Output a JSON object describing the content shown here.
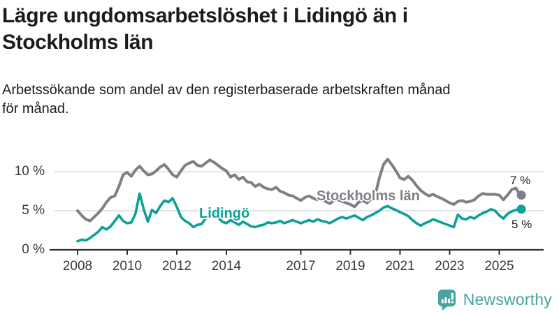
{
  "header": {
    "title_line1": "Lägre ungdomsarbetslöshet i Lidingö än i",
    "title_line2": "Stockholms län",
    "subtitle_line1": "Arbetssökande som andel av den registerbaserade arbetskraften månad",
    "subtitle_line2": "för månad."
  },
  "chart_data": {
    "type": "line",
    "title": "Lägre ungdomsarbetslöshet i Lidingö än i Stockholms län",
    "subtitle": "Arbetssökande som andel av den registerbaserade arbetskraften månad för månad.",
    "unit": "%",
    "grid": true,
    "legend_position": "inline-labels",
    "x_start_year": 2008,
    "x_step_months": 2,
    "ylim": [
      0,
      12.5
    ],
    "grid_values": [
      5,
      10
    ],
    "y_ticks": [
      {
        "value": 0,
        "label": "0 %"
      },
      {
        "value": 5,
        "label": "5 %"
      },
      {
        "value": 10,
        "label": "10 %"
      }
    ],
    "x_tick_years": [
      2008,
      2010,
      2012,
      2014,
      2017,
      2019,
      2021,
      2023,
      2025
    ],
    "x_tick_labels": [
      "2008",
      "2010",
      "2012",
      "2014",
      "2017",
      "2019",
      "2021",
      "2023",
      "2025"
    ],
    "series": [
      {
        "name": "Stockholms län",
        "color": "#7f7f87",
        "end_label": "7 %",
        "end_value": 7,
        "values": [
          5.0,
          4.4,
          3.9,
          3.7,
          4.2,
          4.7,
          5.3,
          6.1,
          6.7,
          6.9,
          8.1,
          9.6,
          9.9,
          9.4,
          10.2,
          10.7,
          10.1,
          9.6,
          9.7,
          10.1,
          10.6,
          10.9,
          10.3,
          9.6,
          9.3,
          10.1,
          10.8,
          11.1,
          11.3,
          10.8,
          10.7,
          11.1,
          11.5,
          11.2,
          10.8,
          10.4,
          10.1,
          9.3,
          9.6,
          9.0,
          9.3,
          8.7,
          8.6,
          8.1,
          8.4,
          8.0,
          7.8,
          7.7,
          8.0,
          7.5,
          7.3,
          7.0,
          6.9,
          6.6,
          6.3,
          6.7,
          6.9,
          6.6,
          6.4,
          6.5,
          6.2,
          5.9,
          6.3,
          6.4,
          6.2,
          6.0,
          5.8,
          5.5,
          6.1,
          6.3,
          6.0,
          6.5,
          7.0,
          9.2,
          10.9,
          11.6,
          10.9,
          10.1,
          9.2,
          9.0,
          9.4,
          8.9,
          8.2,
          7.6,
          7.2,
          6.9,
          7.1,
          6.8,
          6.6,
          6.3,
          6.0,
          5.8,
          6.2,
          6.3,
          6.1,
          6.2,
          6.4,
          6.9,
          7.2,
          7.1,
          7.1,
          7.1,
          7.0,
          6.4,
          7.0,
          7.7,
          7.9,
          7.0
        ]
      },
      {
        "name": "Lidingö",
        "color": "#0ba196",
        "end_label": "5 %",
        "end_value": 5,
        "values": [
          1.1,
          1.3,
          1.2,
          1.5,
          1.9,
          2.3,
          2.9,
          2.6,
          3.0,
          3.7,
          4.4,
          3.7,
          3.4,
          3.5,
          4.6,
          7.2,
          5.2,
          3.6,
          5.1,
          4.7,
          5.6,
          6.3,
          6.1,
          6.6,
          5.5,
          4.2,
          3.7,
          3.4,
          2.9,
          3.2,
          3.3,
          4.0,
          4.4,
          4.9,
          4.1,
          3.6,
          3.4,
          3.8,
          3.5,
          3.2,
          3.6,
          3.3,
          3.0,
          2.9,
          3.1,
          3.2,
          3.5,
          3.4,
          3.5,
          3.7,
          3.4,
          3.6,
          3.8,
          3.6,
          3.4,
          3.6,
          3.8,
          3.6,
          3.9,
          3.7,
          3.6,
          3.4,
          3.7,
          4.0,
          4.2,
          4.0,
          4.2,
          4.4,
          4.1,
          3.8,
          4.2,
          4.4,
          4.7,
          5.0,
          5.4,
          5.6,
          5.3,
          5.1,
          4.8,
          4.6,
          4.3,
          3.8,
          3.4,
          3.1,
          3.4,
          3.6,
          3.9,
          3.7,
          3.5,
          3.3,
          3.1,
          2.9,
          4.5,
          4.0,
          3.9,
          4.2,
          4.0,
          4.4,
          4.7,
          4.9,
          5.2,
          5.0,
          4.4,
          4.0,
          4.6,
          4.9,
          5.1,
          5.2
        ]
      }
    ]
  },
  "footer": {
    "brand": "Newsworthy",
    "brand_color": "#44a4a0"
  }
}
